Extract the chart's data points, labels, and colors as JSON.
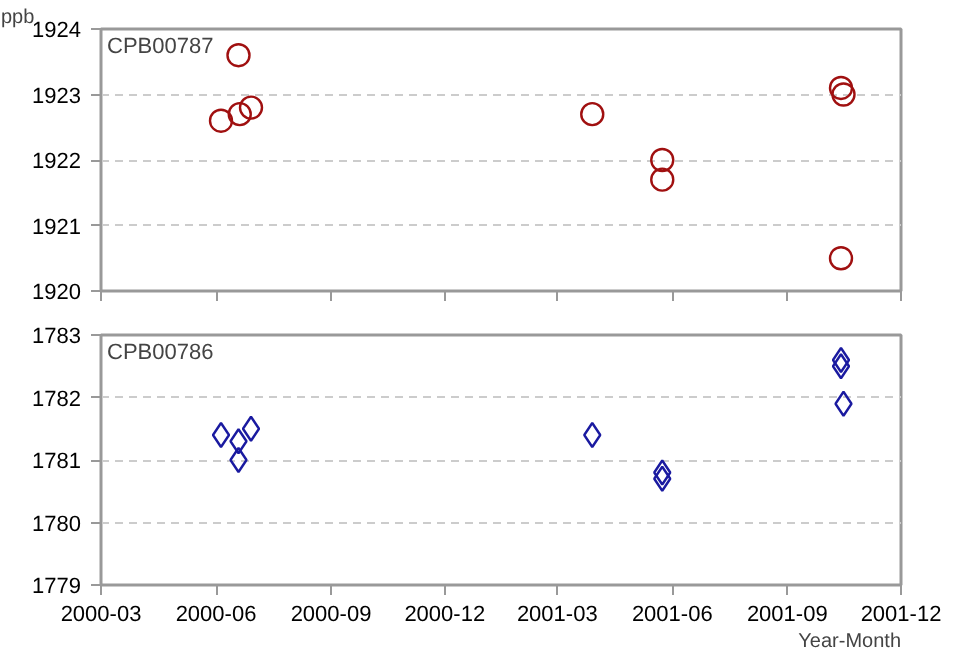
{
  "chart_data": [
    {
      "type": "scatter",
      "title": "CPB00787",
      "ylabel": "ppb",
      "marker": "circle",
      "grid": "y",
      "tick_labels": "y",
      "xlim": [
        "2000-03",
        "2001-12"
      ],
      "xticks": [
        "2000-03",
        "2000-06",
        "2000-09",
        "2000-12",
        "2001-03",
        "2001-06",
        "2001-09",
        "2001-12"
      ],
      "ylim": [
        1920,
        1924
      ],
      "yticks": [
        1920,
        1921,
        1922,
        1923,
        1924
      ],
      "series": [
        {
          "color": "#a01010",
          "x": [
            "2000-06-05",
            "2000-06-19",
            "2000-06-20",
            "2000-06-29",
            "2001-03-29",
            "2001-05-24",
            "2001-05-24",
            "2001-10-14",
            "2001-10-14",
            "2001-10-16"
          ],
          "values": [
            1922.6,
            1923.6,
            1922.7,
            1922.8,
            1922.7,
            1922.0,
            1921.7,
            1923.1,
            1920.5,
            1923.0
          ]
        }
      ]
    },
    {
      "type": "scatter",
      "title": "CPB00786",
      "xlabel": "Year-Month",
      "marker": "diamond",
      "grid": "y",
      "xlim": [
        "2000-03",
        "2001-12"
      ],
      "xticks": [
        "2000-03",
        "2000-06",
        "2000-09",
        "2000-12",
        "2001-03",
        "2001-06",
        "2001-09",
        "2001-12"
      ],
      "ylim": [
        1779,
        1783
      ],
      "yticks": [
        1779,
        1780,
        1781,
        1782,
        1783
      ],
      "series": [
        {
          "color": "#1a1aa0",
          "x": [
            "2000-06-05",
            "2000-06-19",
            "2000-06-19",
            "2000-06-29",
            "2001-03-29",
            "2001-05-24",
            "2001-05-24",
            "2001-10-14",
            "2001-10-14",
            "2001-10-16"
          ],
          "values": [
            1781.4,
            1781.3,
            1781.0,
            1781.5,
            1781.4,
            1780.8,
            1780.7,
            1782.6,
            1782.5,
            1781.9
          ]
        }
      ]
    }
  ]
}
